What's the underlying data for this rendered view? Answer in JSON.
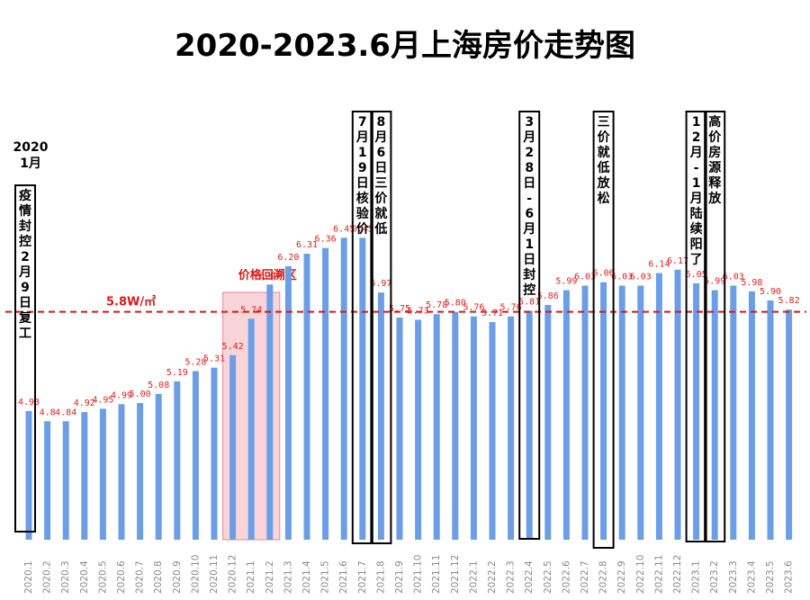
{
  "chart_data": {
    "type": "bar",
    "title": "2020-2023.6月上海房价走势图",
    "categories": [
      "2020.1",
      "2020.2",
      "2020.3",
      "2020.4",
      "2020.5",
      "2020.6",
      "2020.7",
      "2020.8",
      "2020.9",
      "2020.10",
      "2020.11",
      "2020.12",
      "2021.1",
      "2021.2",
      "2021.3",
      "2021.4",
      "2021.5",
      "2021.6",
      "2021.7",
      "2021.8",
      "2021.9",
      "2021.10",
      "2021.11",
      "2021.12",
      "2022.1",
      "2022.2",
      "2022.3",
      "2022.4",
      "2022.5",
      "2022.6",
      "2022.7",
      "2022.8",
      "2022.9",
      "2022.10",
      "2022.11",
      "2022.12",
      "2023.1",
      "2023.2",
      "2023.3",
      "2023.4",
      "2023.5",
      "2023.6"
    ],
    "values": [
      4.93,
      4.84,
      4.84,
      4.92,
      4.95,
      4.99,
      5.0,
      5.08,
      5.19,
      5.28,
      5.31,
      5.42,
      5.74,
      6.04,
      6.2,
      6.31,
      6.36,
      6.45,
      6.45,
      5.97,
      5.75,
      5.73,
      5.78,
      5.8,
      5.76,
      5.71,
      5.76,
      5.81,
      5.86,
      5.99,
      6.03,
      6.06,
      6.03,
      6.03,
      6.14,
      6.17,
      6.05,
      5.99,
      6.03,
      5.98,
      5.9,
      5.82
    ],
    "value_labels": [
      "4.93",
      "4.8",
      "4.84",
      "4.92",
      "4.95",
      "4.99",
      "5.00",
      "5.08",
      "5.19",
      "5.28",
      "5.31",
      "5.42",
      "5.74",
      "6.04",
      "6.20",
      "6.31",
      "6.36",
      "6.45",
      "6.45",
      "5.97",
      "5.75",
      "5.73",
      "5.78",
      "5.80",
      "5.76",
      "5.71",
      "5.76",
      "5.81",
      "5.86",
      "5.99",
      "6.03",
      "6.06",
      "6.03",
      "6.03",
      "6.14",
      "6.17",
      "6.05",
      "5.99",
      "6.03",
      "5.98",
      "5.90",
      "5.82"
    ],
    "xlabel": "",
    "ylabel": "",
    "ylim": [
      3.8,
      6.8
    ],
    "grid": false,
    "bar_color": "#6c9ee6",
    "reference_line": {
      "value": 5.8,
      "label": "5.8W/㎡",
      "color": "#d21a1a"
    },
    "highlight_zone": {
      "from": "2020.12",
      "to": "2021.2",
      "label": "价格回溯区",
      "color": "#f7c6cb"
    },
    "top_label": {
      "lines": [
        "2020",
        "1月"
      ]
    },
    "annotations": [
      {
        "at": "2020.1",
        "text": "疫情封控2月9日复工"
      },
      {
        "at": "2021.7",
        "text": "7月19日核验价"
      },
      {
        "at": "2021.8",
        "text": "8月6日三价就低"
      },
      {
        "at": "2022.4",
        "text": "3月28日-6月1日封控"
      },
      {
        "at": "2022.8",
        "text": "三价就低放松"
      },
      {
        "at": "2023.1",
        "text": "12月-1月陆续阳了"
      },
      {
        "at": "2023.2",
        "text": "高价房源释放"
      }
    ]
  }
}
